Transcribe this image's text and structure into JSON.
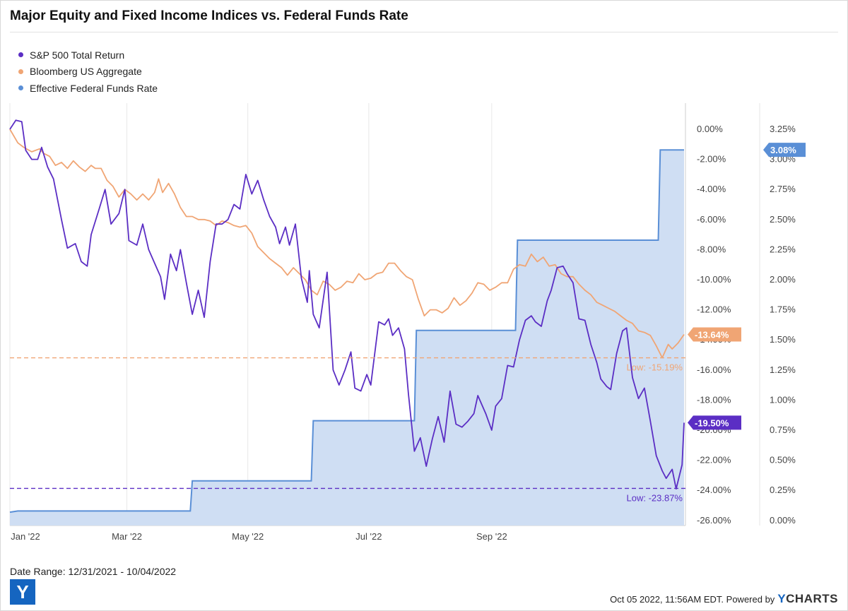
{
  "chart_data": {
    "type": "line",
    "title": "Major Equity and Fixed Income Indices vs. Federal Funds Rate",
    "x_labels": [
      "Jan '22",
      "Mar '22",
      "May '22",
      "Jul '22",
      "Sep '22"
    ],
    "x_domain": [
      "2021-12-31",
      "2022-10-04"
    ],
    "left_axis": {
      "min": -26,
      "max": 0,
      "ticks": [
        "0.00%",
        "-2.00%",
        "-4.00%",
        "-6.00%",
        "-8.00%",
        "-10.00%",
        "-12.00%",
        "-14.00%",
        "-16.00%",
        "-18.00%",
        "-20.00%",
        "-22.00%",
        "-24.00%",
        "-26.00%"
      ]
    },
    "right_axis": {
      "min": 0,
      "max": 3.25,
      "ticks": [
        "3.25%",
        "3.00%",
        "2.75%",
        "2.50%",
        "2.25%",
        "2.00%",
        "1.75%",
        "1.50%",
        "1.25%",
        "1.00%",
        "0.75%",
        "0.50%",
        "0.25%",
        "0.00%"
      ]
    },
    "series": [
      {
        "name": "S&P 500 Total Return",
        "color": "#5b2ec4",
        "axis": "left",
        "last_label": "-19.50%",
        "low_label": "Low: -23.87%",
        "low": -23.87,
        "points": [
          [
            0,
            0
          ],
          [
            3,
            0.6
          ],
          [
            6,
            0.5
          ],
          [
            8,
            -1.4
          ],
          [
            11,
            -2
          ],
          [
            14,
            -2
          ],
          [
            16,
            -1.2
          ],
          [
            19,
            -2.5
          ],
          [
            22,
            -3.3
          ],
          [
            26,
            -6
          ],
          [
            29,
            -7.9
          ],
          [
            33,
            -7.6
          ],
          [
            36,
            -8.8
          ],
          [
            39,
            -9.1
          ],
          [
            41,
            -7
          ],
          [
            45,
            -5.3
          ],
          [
            48,
            -4
          ],
          [
            51,
            -6.3
          ],
          [
            55,
            -5.6
          ],
          [
            58,
            -4
          ],
          [
            60,
            -7.4
          ],
          [
            64,
            -7.7
          ],
          [
            67,
            -6.3
          ],
          [
            70,
            -8
          ],
          [
            73,
            -8.9
          ],
          [
            76,
            -9.8
          ],
          [
            78,
            -11.3
          ],
          [
            81,
            -8.3
          ],
          [
            84,
            -9.4
          ],
          [
            86,
            -8
          ],
          [
            89,
            -10.2
          ],
          [
            92,
            -12.3
          ],
          [
            95,
            -10.7
          ],
          [
            98,
            -12.5
          ],
          [
            101,
            -8.8
          ],
          [
            104,
            -6.3
          ],
          [
            107,
            -6.3
          ],
          [
            110,
            -6
          ],
          [
            113,
            -5
          ],
          [
            116,
            -5.3
          ],
          [
            119,
            -3
          ],
          [
            122,
            -4.3
          ],
          [
            125,
            -3.4
          ],
          [
            128,
            -4.7
          ],
          [
            131,
            -5.8
          ],
          [
            134,
            -6.5
          ],
          [
            136,
            -7.6
          ],
          [
            139,
            -6.5
          ],
          [
            141,
            -7.7
          ],
          [
            144,
            -6.3
          ],
          [
            147,
            -9.9
          ],
          [
            150,
            -11.5
          ],
          [
            151,
            -9.4
          ],
          [
            153,
            -12.3
          ],
          [
            156,
            -13.2
          ],
          [
            160,
            -9.5
          ],
          [
            163,
            -16
          ],
          [
            166,
            -17
          ],
          [
            169,
            -16
          ],
          [
            172,
            -14.8
          ],
          [
            174,
            -17.2
          ],
          [
            177,
            -17.4
          ],
          [
            180,
            -16.3
          ],
          [
            182,
            -17
          ],
          [
            186,
            -12.8
          ],
          [
            189,
            -13
          ],
          [
            191,
            -12.6
          ],
          [
            193,
            -13.7
          ],
          [
            196,
            -13.2
          ],
          [
            199,
            -14.6
          ],
          [
            201,
            -17.6
          ],
          [
            204,
            -21.4
          ],
          [
            207,
            -20.5
          ],
          [
            210,
            -22.4
          ],
          [
            213,
            -20.6
          ],
          [
            216,
            -19.1
          ],
          [
            219,
            -20.8
          ],
          [
            222,
            -17.4
          ],
          [
            225,
            -19.6
          ],
          [
            228,
            -19.8
          ],
          [
            231,
            -19.4
          ],
          [
            234,
            -18.9
          ],
          [
            236,
            -17.7
          ],
          [
            240,
            -18.9
          ],
          [
            243,
            -20
          ],
          [
            245,
            -18.4
          ],
          [
            248,
            -17.9
          ],
          [
            251,
            -15.7
          ],
          [
            254,
            -15.8
          ],
          [
            257,
            -14
          ],
          [
            260,
            -12.7
          ],
          [
            263,
            -12.4
          ],
          [
            265,
            -12.8
          ],
          [
            268,
            -13.1
          ],
          [
            271,
            -11.4
          ],
          [
            273,
            -10.7
          ],
          [
            276,
            -9.2
          ],
          [
            279,
            -9.1
          ],
          [
            281,
            -9.6
          ],
          [
            284,
            -10.2
          ],
          [
            287,
            -12.6
          ],
          [
            290,
            -12.7
          ],
          [
            293,
            -14.3
          ],
          [
            296,
            -15.5
          ],
          [
            298,
            -16.6
          ],
          [
            301,
            -17.1
          ],
          [
            303,
            -17.3
          ],
          [
            306,
            -14.9
          ],
          [
            309,
            -13.4
          ],
          [
            311,
            -13.2
          ],
          [
            314,
            -16.5
          ],
          [
            317,
            -17.9
          ],
          [
            320,
            -17.2
          ],
          [
            323,
            -19.4
          ],
          [
            326,
            -21.7
          ],
          [
            329,
            -22.7
          ],
          [
            331,
            -23.2
          ],
          [
            334,
            -22.6
          ],
          [
            336,
            -23.9
          ],
          [
            339,
            -22.3
          ],
          [
            340,
            -19.5
          ]
        ]
      },
      {
        "name": "Bloomberg US Aggregate",
        "color": "#f0a574",
        "axis": "left",
        "last_label": "-13.64%",
        "low_label": "Low: -15.19%",
        "low": -15.19,
        "points": [
          [
            0,
            0
          ],
          [
            4,
            -0.9
          ],
          [
            7,
            -1.2
          ],
          [
            11,
            -1.5
          ],
          [
            15,
            -1.3
          ],
          [
            17,
            -1.6
          ],
          [
            20,
            -1.8
          ],
          [
            23,
            -2.4
          ],
          [
            26,
            -2.2
          ],
          [
            29,
            -2.6
          ],
          [
            32,
            -2.1
          ],
          [
            35,
            -2.5
          ],
          [
            38,
            -2.8
          ],
          [
            41,
            -2.4
          ],
          [
            43,
            -2.6
          ],
          [
            46,
            -2.6
          ],
          [
            49,
            -3.4
          ],
          [
            52,
            -3.8
          ],
          [
            55,
            -4.5
          ],
          [
            58,
            -4
          ],
          [
            61,
            -4.3
          ],
          [
            64,
            -4.7
          ],
          [
            67,
            -4.3
          ],
          [
            70,
            -4.7
          ],
          [
            73,
            -4.2
          ],
          [
            75,
            -3.3
          ],
          [
            77,
            -4.2
          ],
          [
            80,
            -3.6
          ],
          [
            83,
            -4.3
          ],
          [
            86,
            -5.2
          ],
          [
            89,
            -5.8
          ],
          [
            92,
            -5.8
          ],
          [
            95,
            -6
          ],
          [
            98,
            -6
          ],
          [
            101,
            -6.1
          ],
          [
            104,
            -6.4
          ],
          [
            107,
            -6.1
          ],
          [
            110,
            -6.2
          ],
          [
            113,
            -6.4
          ],
          [
            116,
            -6.5
          ],
          [
            119,
            -6.4
          ],
          [
            122,
            -6.9
          ],
          [
            125,
            -7.8
          ],
          [
            128,
            -8.2
          ],
          [
            131,
            -8.6
          ],
          [
            134,
            -8.9
          ],
          [
            137,
            -9.2
          ],
          [
            140,
            -9.7
          ],
          [
            143,
            -9.2
          ],
          [
            146,
            -9.6
          ],
          [
            149,
            -10
          ],
          [
            152,
            -10.7
          ],
          [
            155,
            -11
          ],
          [
            158,
            -10.1
          ],
          [
            161,
            -10.3
          ],
          [
            164,
            -10.7
          ],
          [
            167,
            -10.5
          ],
          [
            170,
            -10.1
          ],
          [
            173,
            -10.2
          ],
          [
            176,
            -9.6
          ],
          [
            179,
            -10
          ],
          [
            182,
            -9.9
          ],
          [
            185,
            -9.6
          ],
          [
            188,
            -9.5
          ],
          [
            191,
            -8.9
          ],
          [
            194,
            -8.9
          ],
          [
            197,
            -9.4
          ],
          [
            200,
            -9.8
          ],
          [
            203,
            -10
          ],
          [
            206,
            -11.3
          ],
          [
            209,
            -12.4
          ],
          [
            212,
            -12
          ],
          [
            215,
            -12
          ],
          [
            218,
            -12.2
          ],
          [
            221,
            -11.9
          ],
          [
            224,
            -11.2
          ],
          [
            227,
            -11.7
          ],
          [
            230,
            -11.4
          ],
          [
            233,
            -10.9
          ],
          [
            236,
            -10.2
          ],
          [
            239,
            -10.3
          ],
          [
            242,
            -10.7
          ],
          [
            245,
            -10.5
          ],
          [
            248,
            -10.2
          ],
          [
            251,
            -10.2
          ],
          [
            254,
            -9.3
          ],
          [
            257,
            -9
          ],
          [
            260,
            -9.1
          ],
          [
            263,
            -8.3
          ],
          [
            266,
            -8.8
          ],
          [
            269,
            -8.5
          ],
          [
            272,
            -9.1
          ],
          [
            275,
            -9
          ],
          [
            278,
            -9.6
          ],
          [
            281,
            -9.8
          ],
          [
            284,
            -9.8
          ],
          [
            287,
            -10.3
          ],
          [
            290,
            -10.7
          ],
          [
            293,
            -11
          ],
          [
            296,
            -11.5
          ],
          [
            299,
            -11.7
          ],
          [
            302,
            -11.9
          ],
          [
            305,
            -12.1
          ],
          [
            308,
            -12.4
          ],
          [
            311,
            -12.7
          ],
          [
            314,
            -12.9
          ],
          [
            317,
            -13.4
          ],
          [
            320,
            -13.5
          ],
          [
            323,
            -13.7
          ],
          [
            326,
            -14.4
          ],
          [
            329,
            -15.19
          ],
          [
            332,
            -14.3
          ],
          [
            334,
            -14.6
          ],
          [
            337,
            -14.2
          ],
          [
            340,
            -13.64
          ]
        ]
      },
      {
        "name": "Effective Federal Funds Rate",
        "color": "#5a8fd6",
        "axis": "right",
        "last_label": "3.08%",
        "points": [
          [
            0,
            0.07
          ],
          [
            4,
            0.08
          ],
          [
            91,
            0.08
          ],
          [
            92,
            0.33
          ],
          [
            152,
            0.33
          ],
          [
            153,
            0.83
          ],
          [
            204,
            0.83
          ],
          [
            205,
            1.58
          ],
          [
            255,
            1.58
          ],
          [
            256,
            2.33
          ],
          [
            327,
            2.33
          ],
          [
            328,
            3.08
          ],
          [
            340,
            3.08
          ]
        ]
      }
    ]
  },
  "footer": {
    "date_range": "Date Range: 12/31/2021 - 10/04/2022",
    "timestamp": "Oct 05 2022, 11:56AM EDT.",
    "powered_by": "Powered by",
    "brand_y": "Y",
    "brand_rest": "CHARTS",
    "logo_letter": "Y"
  }
}
